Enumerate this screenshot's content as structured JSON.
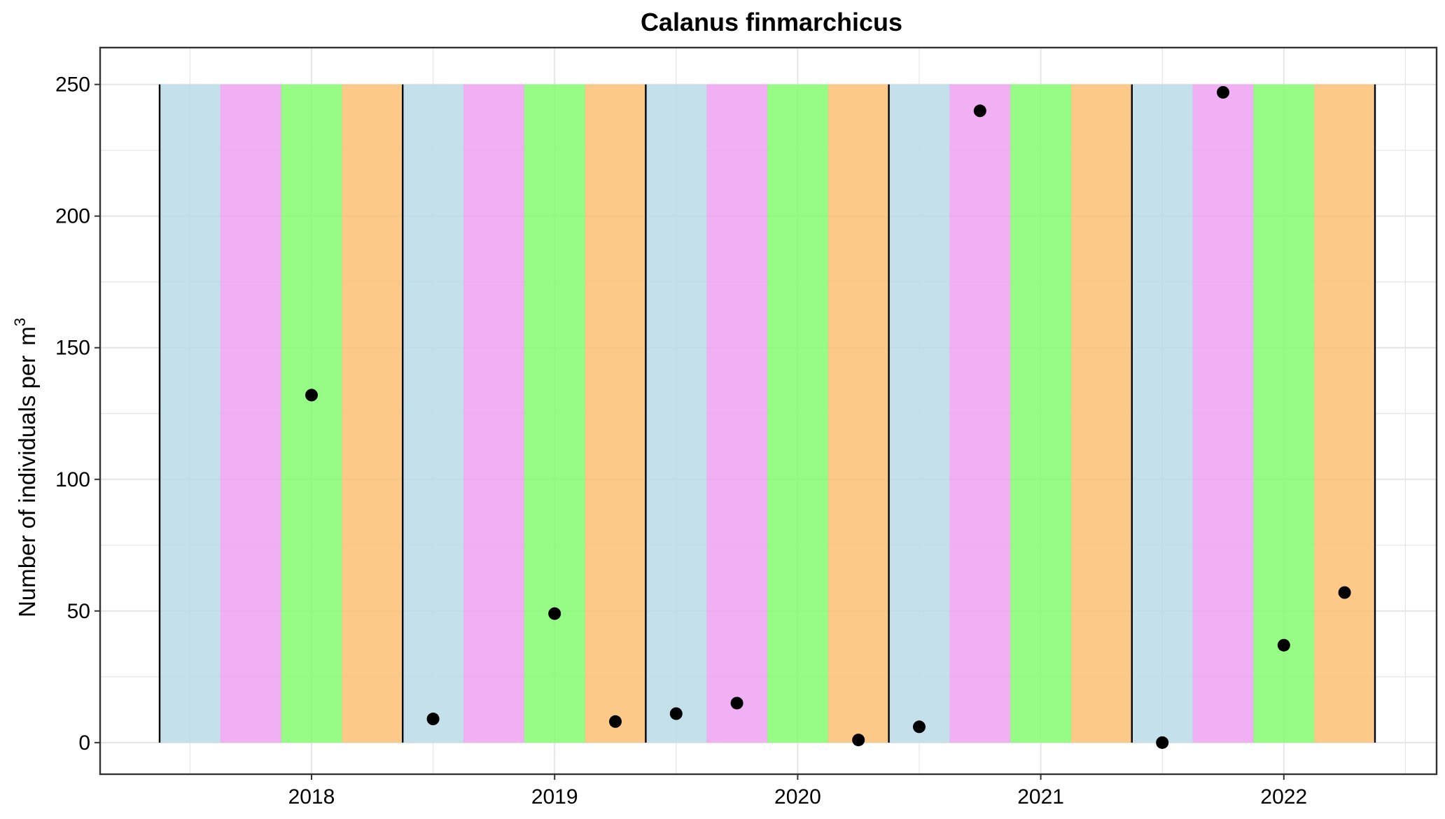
{
  "chart_data": {
    "type": "scatter",
    "title": "Calanus finmarchicus",
    "xlabel": "",
    "ylabel": "Number of individuals per",
    "ylabel_unit_base": "m",
    "ylabel_unit_exponent": "3",
    "ylim": [
      -12,
      264
    ],
    "yticks": [
      0,
      50,
      100,
      150,
      200,
      250
    ],
    "grid": true,
    "legend": "none",
    "x_categories": [
      "2018",
      "2019",
      "2020",
      "2021",
      "2022"
    ],
    "seasons_per_year": 4,
    "season_colors": [
      "#b7dbe6",
      "#ee9ff0",
      "#80fb6b",
      "#fdbd6e"
    ],
    "season_band_top": 250,
    "series": [
      {
        "points": [
          {
            "year": "2018",
            "season": 3,
            "value": 132
          },
          {
            "year": "2019",
            "season": 1,
            "value": 9
          },
          {
            "year": "2019",
            "season": 3,
            "value": 49
          },
          {
            "year": "2019",
            "season": 4,
            "value": 8
          },
          {
            "year": "2020",
            "season": 1,
            "value": 11
          },
          {
            "year": "2020",
            "season": 2,
            "value": 15
          },
          {
            "year": "2020",
            "season": 4,
            "value": 1
          },
          {
            "year": "2021",
            "season": 1,
            "value": 6
          },
          {
            "year": "2021",
            "season": 2,
            "value": 240
          },
          {
            "year": "2022",
            "season": 1,
            "value": 0
          },
          {
            "year": "2022",
            "season": 2,
            "value": 247
          },
          {
            "year": "2022",
            "season": 3,
            "value": 37
          },
          {
            "year": "2022",
            "season": 4,
            "value": 57
          }
        ]
      }
    ],
    "colors": {
      "grid": "#e5e5e5",
      "frame": "#333333",
      "point": "#000000",
      "separator": "#000000"
    }
  }
}
